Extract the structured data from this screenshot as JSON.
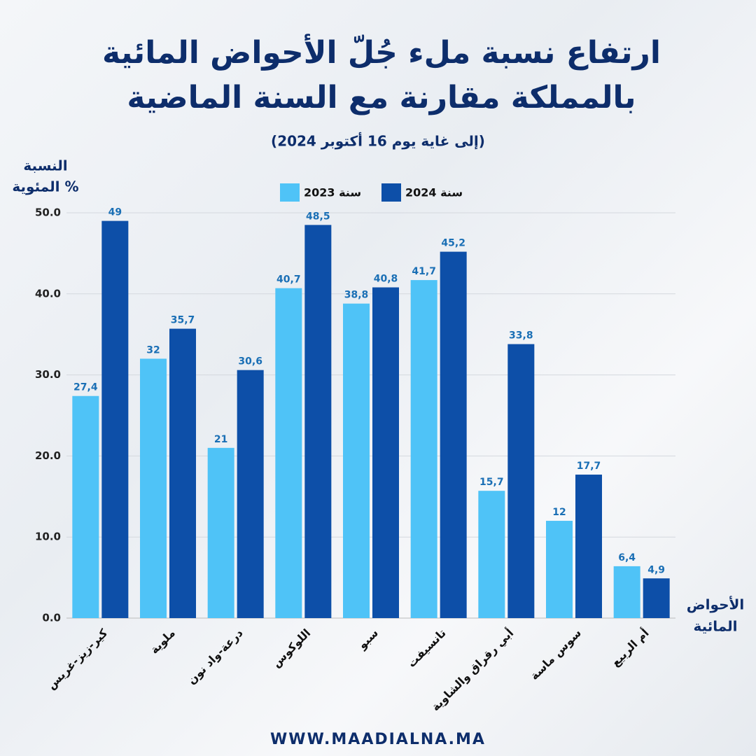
{
  "chart_data": {
    "type": "bar",
    "title": [
      "ارتفاع نسبة ملء جُلّ الأحواض المائية",
      "بالمملكة مقارنة مع  السنة الماضية"
    ],
    "subtitle": "(إلى غاية يوم 16 أكتوبر 2024)",
    "ylabel": [
      "النسبة",
      "المئوية %"
    ],
    "xlabel": [
      "الأحواض",
      "المائية"
    ],
    "categories": [
      "كير-زيز-غريس",
      "ملوية",
      "درعة-واد نون",
      "اللوكوس",
      "سبو",
      "تانسيفت",
      "أبي رقراق والشاوية",
      "سوس ماسة",
      "أم الربيع"
    ],
    "series": [
      {
        "name": "سنة 2023",
        "color": "#4fc3f7",
        "values": [
          27.4,
          32,
          21,
          40.7,
          38.8,
          41.7,
          15.7,
          12,
          6.4
        ],
        "value_labels": [
          "27,4",
          "32",
          "21",
          "40,7",
          "38,8",
          "41,7",
          "15,7",
          "12",
          "6,4"
        ]
      },
      {
        "name": "سنة 2024",
        "color": "#0d4fa8",
        "values": [
          49,
          35.7,
          30.6,
          48.5,
          40.8,
          45.2,
          33.8,
          17.7,
          4.9
        ],
        "value_labels": [
          "49",
          "35,7",
          "30,6",
          "48,5",
          "40,8",
          "45,2",
          "33,8",
          "17,7",
          "4,9"
        ]
      }
    ],
    "ylim": [
      0,
      50
    ],
    "yticks": [
      {
        "value": 0,
        "label": "0.0"
      },
      {
        "value": 10,
        "label": "10.0"
      },
      {
        "value": 20,
        "label": "20.0"
      },
      {
        "value": 30,
        "label": "30.0"
      },
      {
        "value": 40,
        "label": "40.0"
      },
      {
        "value": 50,
        "label": "50.0"
      }
    ],
    "grid": true,
    "legend": "top",
    "footer": "WWW.MAADIALNA.MA"
  }
}
